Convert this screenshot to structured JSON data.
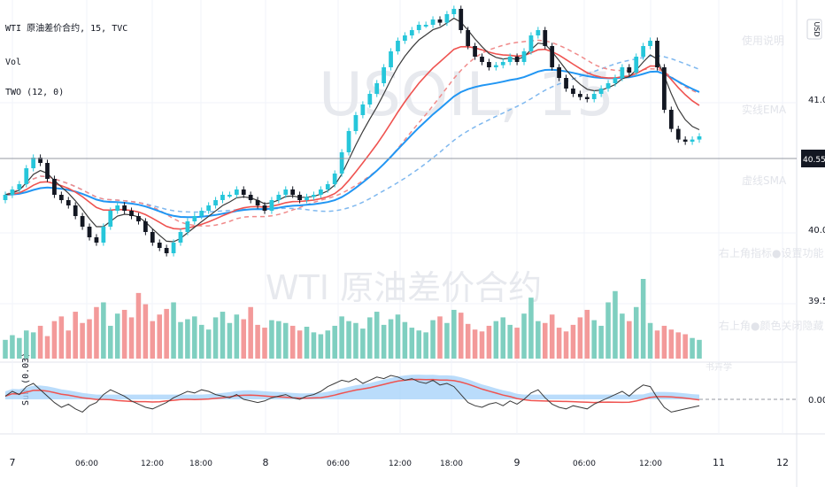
{
  "legend": {
    "symbol_line": "WTI 原油差价合约, 15, TVC",
    "vol_label": "Vol",
    "two_label": "TWO (12, 0)",
    "sub_label": "Sub (0.03)"
  },
  "watermark": {
    "ticker": "USOIL, 15",
    "name": "WTI 原油差价合约"
  },
  "side_notes": [
    "使用说明",
    "实线EMA",
    "虚线SMA",
    "右上角指标●设置功能",
    "右上角●颜色关闭隐藏",
    "书卉学"
  ],
  "price_axis": {
    "currency": "USD",
    "labels": [
      "41.00",
      "40.00",
      "39.50"
    ],
    "current": "40.55",
    "sub_zero": "0.00",
    "ylim": [
      39.0,
      41.5
    ]
  },
  "time_axis": {
    "labels": [
      "7",
      "06:00",
      "12:00",
      "18:00",
      "8",
      "06:00",
      "12:00",
      "18:00",
      "9",
      "06:00",
      "12:00",
      "11",
      "12"
    ]
  },
  "colors": {
    "up": "#26c6da",
    "down": "#131722",
    "vol_up": "#7fcfc0",
    "vol_down": "#f39a9a",
    "ema_fast": "#3a3a3a",
    "ema_mid": "#ef5350",
    "ema_slow": "#2196f3",
    "sma_mid": "#f08a8a",
    "sma_slow": "#7fb8ef",
    "band": "#a9d3fa"
  },
  "chart_data": {
    "type": "candlestick",
    "close": [
      40.0,
      40.05,
      40.1,
      40.25,
      40.35,
      40.3,
      40.15,
      40.0,
      39.95,
      39.9,
      39.8,
      39.7,
      39.6,
      39.55,
      39.7,
      39.85,
      39.9,
      39.85,
      39.8,
      39.75,
      39.65,
      39.55,
      39.5,
      39.45,
      39.55,
      39.65,
      39.75,
      39.8,
      39.85,
      39.9,
      39.95,
      40.0,
      40.0,
      40.05,
      40.0,
      39.95,
      39.9,
      39.85,
      39.95,
      40.0,
      40.05,
      40.0,
      39.95,
      39.98,
      40.0,
      40.05,
      40.1,
      40.2,
      40.4,
      40.6,
      40.75,
      40.85,
      40.95,
      41.05,
      41.2,
      41.35,
      41.45,
      41.5,
      41.55,
      41.6,
      41.6,
      41.65,
      41.62,
      41.7,
      41.75,
      41.55,
      41.4,
      41.3,
      41.25,
      41.2,
      41.22,
      41.25,
      41.3,
      41.25,
      41.35,
      41.5,
      41.55,
      41.4,
      41.2,
      41.1,
      41.0,
      40.95,
      40.92,
      40.9,
      40.95,
      41.0,
      41.05,
      41.1,
      41.2,
      41.15,
      41.3,
      41.4,
      41.45,
      41.2,
      40.8,
      40.62,
      40.52,
      40.5,
      40.52,
      40.55
    ],
    "volume": [
      20,
      25,
      22,
      30,
      28,
      35,
      24,
      40,
      45,
      30,
      50,
      38,
      42,
      55,
      60,
      35,
      48,
      52,
      44,
      70,
      58,
      40,
      47,
      53,
      60,
      39,
      42,
      45,
      36,
      31,
      44,
      50,
      38,
      47,
      42,
      55,
      36,
      33,
      41,
      40,
      38,
      35,
      30,
      34,
      28,
      26,
      30,
      35,
      45,
      40,
      38,
      32,
      44,
      50,
      36,
      42,
      47,
      39,
      33,
      30,
      28,
      41,
      45,
      38,
      52,
      49,
      37,
      31,
      29,
      35,
      40,
      44,
      36,
      33,
      48,
      65,
      40,
      38,
      47,
      33,
      29,
      36,
      44,
      52,
      41,
      35,
      60,
      72,
      48,
      40,
      55,
      85,
      38,
      30,
      35,
      31,
      28,
      26,
      22,
      20
    ],
    "sub_series": [
      0.02,
      0.05,
      0.03,
      0.08,
      0.1,
      0.06,
      0.02,
      -0.02,
      -0.05,
      -0.03,
      -0.06,
      -0.08,
      -0.04,
      -0.02,
      0.03,
      0.06,
      0.04,
      0.02,
      -0.01,
      -0.03,
      -0.05,
      -0.06,
      -0.04,
      -0.02,
      0.01,
      0.03,
      0.05,
      0.04,
      0.06,
      0.05,
      0.03,
      0.02,
      0.01,
      0.03,
      0.0,
      -0.01,
      -0.02,
      -0.01,
      0.01,
      0.02,
      0.03,
      0.01,
      0.0,
      0.02,
      0.03,
      0.05,
      0.08,
      0.1,
      0.12,
      0.11,
      0.13,
      0.1,
      0.12,
      0.14,
      0.13,
      0.15,
      0.14,
      0.12,
      0.13,
      0.11,
      0.1,
      0.12,
      0.09,
      0.1,
      0.08,
      0.03,
      -0.02,
      -0.04,
      -0.05,
      -0.03,
      -0.02,
      -0.04,
      -0.01,
      -0.03,
      0.0,
      0.04,
      0.06,
      0.01,
      -0.03,
      -0.05,
      -0.06,
      -0.04,
      -0.05,
      -0.06,
      -0.03,
      -0.01,
      0.01,
      0.03,
      0.05,
      0.02,
      0.06,
      0.09,
      0.08,
      0.01,
      -0.05,
      -0.08,
      -0.07,
      -0.06,
      -0.05,
      -0.04
    ],
    "ylim": [
      39.0,
      41.5
    ]
  }
}
